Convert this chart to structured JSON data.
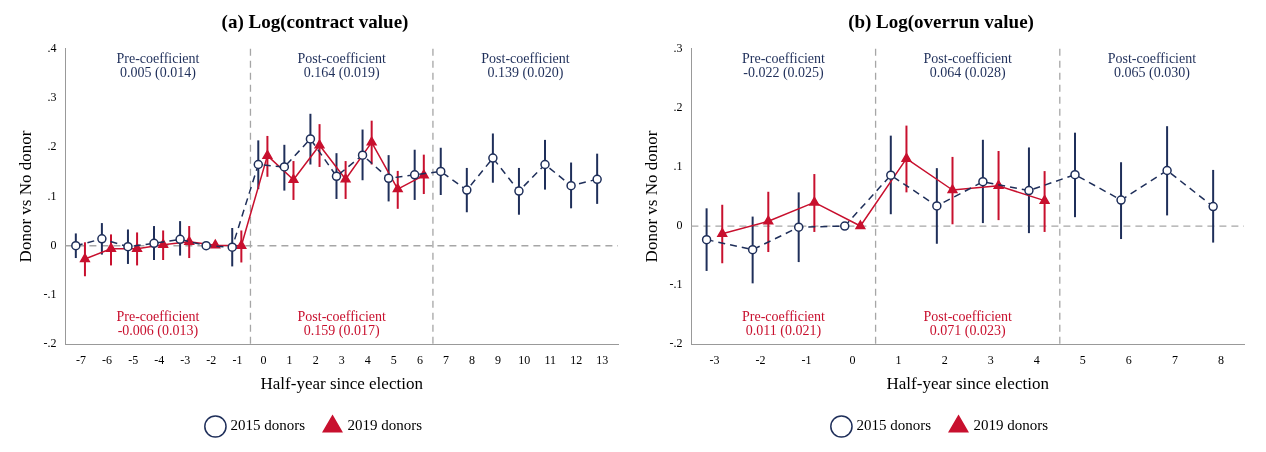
{
  "chart_data": [
    {
      "type": "line",
      "title": "(a) Log(contract value)",
      "xlabel": "Half-year since election",
      "ylabel": "Donor vs No donor",
      "xlim": [
        -7.6,
        13.6
      ],
      "xticks": [
        -7,
        -6,
        -5,
        -4,
        -3,
        -2,
        -1,
        0,
        1,
        2,
        3,
        4,
        5,
        6,
        7,
        8,
        9,
        10,
        11,
        12,
        13
      ],
      "ylim": [
        -0.2,
        0.4
      ],
      "yticks": [
        {
          "value": -0.2,
          "label": "-.2"
        },
        {
          "value": -0.1,
          "label": "-.1"
        },
        0,
        {
          "value": 0.1,
          "label": ".1"
        },
        {
          "value": 0.2,
          "label": ".2"
        },
        {
          "value": 0.3,
          "label": ".3"
        },
        {
          "value": 0.4,
          "label": ".4"
        }
      ],
      "grid": false,
      "legend": "bottom",
      "series": [
        {
          "name": "2015 donors",
          "color": "#1f2f5a",
          "marker": "circle",
          "line_style": "dashed",
          "x": [
            -7.2,
            -6.2,
            -5.2,
            -4.2,
            -3.2,
            -2.2,
            -1.2,
            -0.2,
            0.8,
            1.8,
            2.8,
            3.8,
            4.8,
            5.8,
            6.8,
            7.8,
            8.8,
            9.8,
            10.8,
            11.8,
            12.8
          ],
          "values": [
            0.0,
            0.014,
            -0.002,
            0.005,
            0.013,
            0.0,
            -0.003,
            0.165,
            0.16,
            0.217,
            0.141,
            0.184,
            0.137,
            0.144,
            0.151,
            0.113,
            0.178,
            0.111,
            0.165,
            0.122,
            0.135
          ],
          "errors": [
            [
              -0.025,
              0.025
            ],
            [
              -0.018,
              0.046
            ],
            [
              -0.037,
              0.033
            ],
            [
              -0.029,
              0.04
            ],
            [
              -0.02,
              0.05
            ],
            null,
            [
              -0.042,
              0.036
            ],
            [
              0.115,
              0.214
            ],
            [
              0.112,
              0.205
            ],
            [
              0.165,
              0.268
            ],
            [
              0.095,
              0.188
            ],
            [
              0.133,
              0.236
            ],
            [
              0.09,
              0.184
            ],
            [
              0.093,
              0.195
            ],
            [
              0.103,
              0.199
            ],
            [
              0.068,
              0.158
            ],
            [
              0.128,
              0.228
            ],
            [
              0.063,
              0.158
            ],
            [
              0.114,
              0.215
            ],
            [
              0.076,
              0.169
            ],
            [
              0.085,
              0.187
            ]
          ]
        },
        {
          "name": "2019 donors",
          "color": "#c8102e",
          "marker": "triangle",
          "line_style": "solid",
          "x": [
            -6.85,
            -5.85,
            -4.85,
            -3.85,
            -2.85,
            -1.85,
            -0.85,
            0.15,
            1.15,
            2.15,
            3.15,
            4.15,
            5.15,
            6.15
          ],
          "values": [
            -0.027,
            -0.006,
            -0.006,
            0.002,
            0.008,
            0.001,
            0.0,
            0.183,
            0.134,
            0.204,
            0.135,
            0.21,
            0.115,
            0.143
          ],
          "errors": [
            [
              -0.062,
              0.007
            ],
            [
              -0.04,
              0.023
            ],
            [
              -0.04,
              0.027
            ],
            [
              -0.029,
              0.031
            ],
            [
              -0.025,
              0.04
            ],
            null,
            [
              -0.034,
              0.031
            ],
            [
              0.14,
              0.223
            ],
            [
              0.093,
              0.172
            ],
            [
              0.16,
              0.247
            ],
            [
              0.095,
              0.172
            ],
            [
              0.165,
              0.254
            ],
            [
              0.075,
              0.152
            ],
            [
              0.105,
              0.185
            ]
          ]
        }
      ],
      "ref_lines": [
        {
          "axis": "x",
          "value": -0.5,
          "color": "#a6a6a6",
          "line_style": "dashed"
        },
        {
          "axis": "x",
          "value": 6.5,
          "color": "#a6a6a6",
          "line_style": "dashed"
        },
        {
          "axis": "y",
          "value": 0,
          "color": "#a6a6a6",
          "line_style": "dashed"
        }
      ],
      "annotations": [
        "Pre-coefficient\n0.005 (0.014)",
        "Post-coefficient\n0.164 (0.019)",
        "Post-coefficient\n0.139 (0.020)",
        "Pre-coefficient\n-0.006 (0.013)",
        "Post-coefficient\n0.159 (0.017)"
      ]
    },
    {
      "type": "line",
      "title": "(b) Log(overrun value)",
      "xlabel": "Half-year since election",
      "ylabel": "Donor vs No donor",
      "xlim": [
        -3.5,
        8.5
      ],
      "xticks": [
        -3,
        -2,
        -1,
        0,
        1,
        2,
        3,
        4,
        5,
        6,
        7,
        8
      ],
      "ylim": [
        -0.2,
        0.3
      ],
      "yticks": [
        {
          "value": -0.2,
          "label": "-.2"
        },
        {
          "value": -0.1,
          "label": "-.1"
        },
        0,
        {
          "value": 0.1,
          "label": ".1"
        },
        {
          "value": 0.2,
          "label": ".2"
        },
        {
          "value": 0.3,
          "label": ".3"
        }
      ],
      "grid": false,
      "legend": "bottom",
      "series": [
        {
          "name": "2015 donors",
          "color": "#1f2f5a",
          "marker": "circle",
          "line_style": "dashed",
          "x": [
            -3.17,
            -2.17,
            -1.17,
            -0.17,
            0.83,
            1.83,
            2.83,
            3.83,
            4.83,
            5.83,
            6.83,
            7.83
          ],
          "values": [
            -0.023,
            -0.04,
            -0.002,
            0.0,
            0.086,
            0.034,
            0.075,
            0.06,
            0.087,
            0.044,
            0.094,
            0.033
          ],
          "errors": [
            [
              -0.076,
              0.03
            ],
            [
              -0.097,
              0.016
            ],
            [
              -0.061,
              0.057
            ],
            null,
            [
              0.02,
              0.153
            ],
            [
              -0.03,
              0.098
            ],
            [
              0.005,
              0.146
            ],
            [
              -0.012,
              0.133
            ],
            [
              0.015,
              0.158
            ],
            [
              -0.022,
              0.108
            ],
            [
              0.018,
              0.169
            ],
            [
              -0.028,
              0.095
            ]
          ]
        },
        {
          "name": "2019 donors",
          "color": "#c8102e",
          "marker": "triangle",
          "line_style": "solid",
          "x": [
            -2.83,
            -1.83,
            -0.83,
            0.17,
            1.17,
            2.17,
            3.17,
            4.17
          ],
          "values": [
            -0.013,
            0.008,
            0.04,
            0.0,
            0.114,
            0.061,
            0.068,
            0.043
          ],
          "errors": [
            [
              -0.063,
              0.036
            ],
            [
              -0.044,
              0.058
            ],
            [
              -0.01,
              0.088
            ],
            null,
            [
              0.057,
              0.17
            ],
            [
              0.003,
              0.117
            ],
            [
              0.01,
              0.127
            ],
            [
              -0.01,
              0.093
            ]
          ]
        }
      ],
      "ref_lines": [
        {
          "axis": "x",
          "value": 0.5,
          "color": "#a6a6a6",
          "line_style": "dashed"
        },
        {
          "axis": "x",
          "value": 4.5,
          "color": "#a6a6a6",
          "line_style": "dashed"
        },
        {
          "axis": "y",
          "value": 0,
          "color": "#a6a6a6",
          "line_style": "dashed"
        }
      ],
      "annotations": [
        "Pre-coefficient\n-0.022 (0.025)",
        "Post-coefficient\n0.064 (0.028)",
        "Post-coefficient\n0.065 (0.030)",
        "Pre-coefficient\n0.011 (0.021)",
        "Post-coefficient\n0.071 (0.023)"
      ]
    }
  ]
}
